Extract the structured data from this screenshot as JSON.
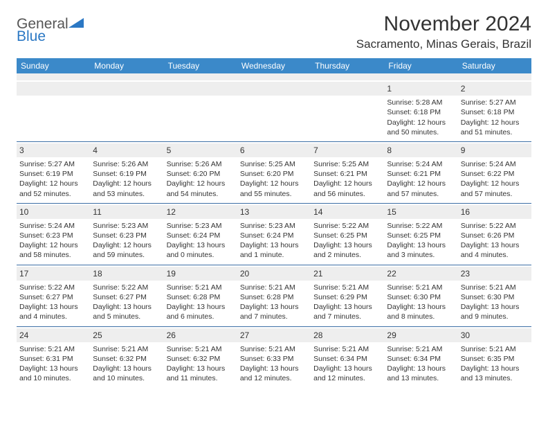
{
  "logo": {
    "line1": "General",
    "line2": "Blue"
  },
  "title": "November 2024",
  "location": "Sacramento, Minas Gerais, Brazil",
  "colors": {
    "header_bg": "#3b89c9",
    "header_text": "#ffffff",
    "daynum_bg": "#eeeeee",
    "week_border": "#3b6ea5",
    "body_text": "#333333",
    "logo_gray": "#555555",
    "logo_blue": "#2b78c4"
  },
  "weekdays": [
    "Sunday",
    "Monday",
    "Tuesday",
    "Wednesday",
    "Thursday",
    "Friday",
    "Saturday"
  ],
  "weeks": [
    [
      {
        "n": "",
        "sr": "",
        "ss": "",
        "dl": ""
      },
      {
        "n": "",
        "sr": "",
        "ss": "",
        "dl": ""
      },
      {
        "n": "",
        "sr": "",
        "ss": "",
        "dl": ""
      },
      {
        "n": "",
        "sr": "",
        "ss": "",
        "dl": ""
      },
      {
        "n": "",
        "sr": "",
        "ss": "",
        "dl": ""
      },
      {
        "n": "1",
        "sr": "Sunrise: 5:28 AM",
        "ss": "Sunset: 6:18 PM",
        "dl": "Daylight: 12 hours and 50 minutes."
      },
      {
        "n": "2",
        "sr": "Sunrise: 5:27 AM",
        "ss": "Sunset: 6:18 PM",
        "dl": "Daylight: 12 hours and 51 minutes."
      }
    ],
    [
      {
        "n": "3",
        "sr": "Sunrise: 5:27 AM",
        "ss": "Sunset: 6:19 PM",
        "dl": "Daylight: 12 hours and 52 minutes."
      },
      {
        "n": "4",
        "sr": "Sunrise: 5:26 AM",
        "ss": "Sunset: 6:19 PM",
        "dl": "Daylight: 12 hours and 53 minutes."
      },
      {
        "n": "5",
        "sr": "Sunrise: 5:26 AM",
        "ss": "Sunset: 6:20 PM",
        "dl": "Daylight: 12 hours and 54 minutes."
      },
      {
        "n": "6",
        "sr": "Sunrise: 5:25 AM",
        "ss": "Sunset: 6:20 PM",
        "dl": "Daylight: 12 hours and 55 minutes."
      },
      {
        "n": "7",
        "sr": "Sunrise: 5:25 AM",
        "ss": "Sunset: 6:21 PM",
        "dl": "Daylight: 12 hours and 56 minutes."
      },
      {
        "n": "8",
        "sr": "Sunrise: 5:24 AM",
        "ss": "Sunset: 6:21 PM",
        "dl": "Daylight: 12 hours and 57 minutes."
      },
      {
        "n": "9",
        "sr": "Sunrise: 5:24 AM",
        "ss": "Sunset: 6:22 PM",
        "dl": "Daylight: 12 hours and 57 minutes."
      }
    ],
    [
      {
        "n": "10",
        "sr": "Sunrise: 5:24 AM",
        "ss": "Sunset: 6:23 PM",
        "dl": "Daylight: 12 hours and 58 minutes."
      },
      {
        "n": "11",
        "sr": "Sunrise: 5:23 AM",
        "ss": "Sunset: 6:23 PM",
        "dl": "Daylight: 12 hours and 59 minutes."
      },
      {
        "n": "12",
        "sr": "Sunrise: 5:23 AM",
        "ss": "Sunset: 6:24 PM",
        "dl": "Daylight: 13 hours and 0 minutes."
      },
      {
        "n": "13",
        "sr": "Sunrise: 5:23 AM",
        "ss": "Sunset: 6:24 PM",
        "dl": "Daylight: 13 hours and 1 minute."
      },
      {
        "n": "14",
        "sr": "Sunrise: 5:22 AM",
        "ss": "Sunset: 6:25 PM",
        "dl": "Daylight: 13 hours and 2 minutes."
      },
      {
        "n": "15",
        "sr": "Sunrise: 5:22 AM",
        "ss": "Sunset: 6:25 PM",
        "dl": "Daylight: 13 hours and 3 minutes."
      },
      {
        "n": "16",
        "sr": "Sunrise: 5:22 AM",
        "ss": "Sunset: 6:26 PM",
        "dl": "Daylight: 13 hours and 4 minutes."
      }
    ],
    [
      {
        "n": "17",
        "sr": "Sunrise: 5:22 AM",
        "ss": "Sunset: 6:27 PM",
        "dl": "Daylight: 13 hours and 4 minutes."
      },
      {
        "n": "18",
        "sr": "Sunrise: 5:22 AM",
        "ss": "Sunset: 6:27 PM",
        "dl": "Daylight: 13 hours and 5 minutes."
      },
      {
        "n": "19",
        "sr": "Sunrise: 5:21 AM",
        "ss": "Sunset: 6:28 PM",
        "dl": "Daylight: 13 hours and 6 minutes."
      },
      {
        "n": "20",
        "sr": "Sunrise: 5:21 AM",
        "ss": "Sunset: 6:28 PM",
        "dl": "Daylight: 13 hours and 7 minutes."
      },
      {
        "n": "21",
        "sr": "Sunrise: 5:21 AM",
        "ss": "Sunset: 6:29 PM",
        "dl": "Daylight: 13 hours and 7 minutes."
      },
      {
        "n": "22",
        "sr": "Sunrise: 5:21 AM",
        "ss": "Sunset: 6:30 PM",
        "dl": "Daylight: 13 hours and 8 minutes."
      },
      {
        "n": "23",
        "sr": "Sunrise: 5:21 AM",
        "ss": "Sunset: 6:30 PM",
        "dl": "Daylight: 13 hours and 9 minutes."
      }
    ],
    [
      {
        "n": "24",
        "sr": "Sunrise: 5:21 AM",
        "ss": "Sunset: 6:31 PM",
        "dl": "Daylight: 13 hours and 10 minutes."
      },
      {
        "n": "25",
        "sr": "Sunrise: 5:21 AM",
        "ss": "Sunset: 6:32 PM",
        "dl": "Daylight: 13 hours and 10 minutes."
      },
      {
        "n": "26",
        "sr": "Sunrise: 5:21 AM",
        "ss": "Sunset: 6:32 PM",
        "dl": "Daylight: 13 hours and 11 minutes."
      },
      {
        "n": "27",
        "sr": "Sunrise: 5:21 AM",
        "ss": "Sunset: 6:33 PM",
        "dl": "Daylight: 13 hours and 12 minutes."
      },
      {
        "n": "28",
        "sr": "Sunrise: 5:21 AM",
        "ss": "Sunset: 6:34 PM",
        "dl": "Daylight: 13 hours and 12 minutes."
      },
      {
        "n": "29",
        "sr": "Sunrise: 5:21 AM",
        "ss": "Sunset: 6:34 PM",
        "dl": "Daylight: 13 hours and 13 minutes."
      },
      {
        "n": "30",
        "sr": "Sunrise: 5:21 AM",
        "ss": "Sunset: 6:35 PM",
        "dl": "Daylight: 13 hours and 13 minutes."
      }
    ]
  ]
}
